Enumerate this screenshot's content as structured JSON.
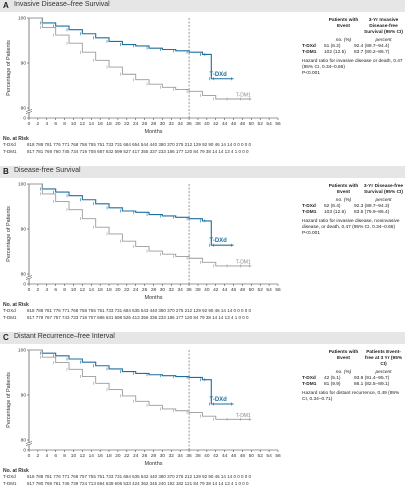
{
  "panels": [
    {
      "letter": "A",
      "title": "Invasive Disease–free Survival",
      "col_patients": "Patients with Event",
      "col_stat": "3-Yr Invasive Disease-free Survival (95% CI)",
      "units_no": "no. (%)",
      "units_pct": "percent",
      "rows": [
        {
          "arm": "T-DXd",
          "events": "51 (6.2)",
          "pct": "92.4 (89.7–94.4)"
        },
        {
          "arm": "T-DM1",
          "events": "102 (12.5)",
          "pct": "83.7 (80.2–86.7)"
        }
      ],
      "hazard_text": "Hazard ratio for invasive disease or death, 0.47 (95% CI, 0.34–0.66)",
      "p_text": "P<0.001",
      "risk_title": "No. at Risk",
      "risk": [
        {
          "arm": "T-DXd",
          "counts": "818 788 781 776 771 768 758 755 751 733 731 684 654 544 440 380 370 275 212 129 92 90 46 14 14 0 0 0 0 0"
        },
        {
          "arm": "T-DM1",
          "counts": "817 781 769 760 745 734 719 708 687 632 599 527 417 355 337 233 186 177 120 84 79 38 14 14 13 4 1 0 0 0"
        }
      ]
    },
    {
      "letter": "B",
      "title": "Disease-free Survival",
      "col_patients": "Patients with Event",
      "col_stat": "3-Yr Disease-free Survival (95% CI)",
      "units_no": "no. (%)",
      "units_pct": "percent",
      "rows": [
        {
          "arm": "T-DXd",
          "events": "52 (6.4)",
          "pct": "92.3 (89.7–94.3)"
        },
        {
          "arm": "T-DM1",
          "events": "103 (12.6)",
          "pct": "83.5 (79.9–86.4)"
        }
      ],
      "hazard_text": "Hazard ratio for invasive disease, noninvasive disease, or death, 0.47 (95% CI, 0.34–0.66)",
      "p_text": "P<0.001",
      "risk_title": "No. at Risk",
      "risk": [
        {
          "arm": "T-DXd",
          "counts": "818 788 781 776 771 768 758 755 751 733 731 684 635 543 440 380 370 275 212 129 92 90 46 14 14 0 0 0 0 0"
        },
        {
          "arm": "T-DM1",
          "counts": "817 779 767 757 743 733 718 707 686 631 598 526 413 356 336 233 186 177 120 84 79 38 14 14 13 4 1 0 0 0"
        }
      ]
    },
    {
      "letter": "C",
      "title": "Distant Recurrence–free Interval",
      "col_patients": "Patients with Event",
      "col_stat": "Patients Event-free at 3 Yr (95% CI)",
      "units_no": "no. (%)",
      "units_pct": "percent",
      "rows": [
        {
          "arm": "T-DXd",
          "events": "42 (5.1)",
          "pct": "93.9 (91.4–95.7)"
        },
        {
          "arm": "T-DM1",
          "events": "81 (9.9)",
          "pct": "86.1 (82.5–89.1)"
        }
      ],
      "hazard_text": "Hazard ratio for distant recurrence, 0.49 (95% CI, 0.34–0.71)",
      "p_text": "",
      "risk_title": "No. at Risk",
      "risk": [
        {
          "arm": "T-DXd",
          "counts": "818 788 781 776 771 768 757 755 751 733 731 684 635 542 440 380 370 276 212 129 92 90 46 14 14 0 0 0 0 0"
        },
        {
          "arm": "T-DM1",
          "counts": "817 780 769 761 746 739 724 713 694 639 606 533 424 362 345 240 192 182 121 84 79 38 14 14 13 4 1 0 0 0"
        }
      ]
    }
  ],
  "chart_data": [
    {
      "type": "line",
      "title": "Invasive Disease–free Survival",
      "xlabel": "Months",
      "ylabel": "Percentage of Patients",
      "xlim": [
        0,
        56
      ],
      "ylim": [
        0,
        100
      ],
      "y_ticks": [
        0,
        80,
        90,
        100
      ],
      "x_ticks": [
        0,
        2,
        4,
        6,
        8,
        10,
        12,
        14,
        16,
        18,
        20,
        22,
        24,
        26,
        28,
        30,
        32,
        34,
        36,
        38,
        40,
        42,
        44,
        46,
        48,
        50,
        52,
        54,
        56
      ],
      "reference_x": 36,
      "series": [
        {
          "name": "T-DXd",
          "color": "#1f6f9f",
          "x": [
            0,
            3,
            6,
            9,
            12,
            15,
            18,
            21,
            24,
            27,
            30,
            33,
            36,
            39,
            40,
            41,
            42,
            46
          ],
          "y": [
            100,
            98.9,
            98.2,
            97.4,
            96.5,
            95.6,
            94.8,
            94.1,
            93.8,
            93.3,
            93.0,
            92.7,
            92.4,
            91.9,
            91.9,
            86.5,
            86.5,
            86.5
          ]
        },
        {
          "name": "T-DM1",
          "color": "#9a9a9a",
          "x": [
            0,
            3,
            6,
            9,
            12,
            15,
            18,
            21,
            24,
            27,
            30,
            33,
            36,
            39,
            42,
            45,
            48,
            50
          ],
          "y": [
            100,
            97.9,
            96.2,
            94.4,
            92.4,
            90.6,
            89.1,
            87.5,
            86.3,
            85.3,
            84.6,
            84.1,
            83.7,
            82.8,
            82.0,
            82.0,
            82.0,
            82.0
          ]
        }
      ]
    },
    {
      "type": "line",
      "title": "Disease-free Survival",
      "xlabel": "Months",
      "ylabel": "Percentage of Patients",
      "xlim": [
        0,
        56
      ],
      "ylim": [
        0,
        100
      ],
      "y_ticks": [
        0,
        80,
        90,
        100
      ],
      "x_ticks": [
        0,
        2,
        4,
        6,
        8,
        10,
        12,
        14,
        16,
        18,
        20,
        22,
        24,
        26,
        28,
        30,
        32,
        34,
        36,
        38,
        40,
        42,
        44,
        46,
        48,
        50,
        52,
        54,
        56
      ],
      "reference_x": 36,
      "series": [
        {
          "name": "T-DXd",
          "color": "#1f6f9f",
          "x": [
            0,
            3,
            6,
            9,
            12,
            15,
            18,
            21,
            24,
            27,
            30,
            33,
            36,
            39,
            40,
            41,
            42,
            46
          ],
          "y": [
            100,
            98.9,
            98.2,
            97.4,
            96.5,
            95.6,
            94.7,
            94.0,
            93.7,
            93.2,
            92.9,
            92.6,
            92.3,
            91.8,
            91.8,
            86.4,
            86.4,
            86.4
          ]
        },
        {
          "name": "T-DM1",
          "color": "#9a9a9a",
          "x": [
            0,
            3,
            6,
            9,
            12,
            15,
            18,
            21,
            24,
            27,
            30,
            33,
            36,
            39,
            42,
            45,
            48,
            50
          ],
          "y": [
            100,
            97.8,
            96.1,
            94.3,
            92.3,
            90.4,
            88.9,
            87.3,
            86.1,
            85.1,
            84.4,
            83.9,
            83.5,
            82.6,
            81.8,
            81.8,
            81.8,
            81.8
          ]
        }
      ]
    },
    {
      "type": "line",
      "title": "Distant Recurrence–free Interval",
      "xlabel": "Months",
      "ylabel": "Percentage of Patients",
      "xlim": [
        0,
        56
      ],
      "ylim": [
        0,
        100
      ],
      "y_ticks": [
        0,
        80,
        90,
        100
      ],
      "x_ticks": [
        0,
        2,
        4,
        6,
        8,
        10,
        12,
        14,
        16,
        18,
        20,
        22,
        24,
        26,
        28,
        30,
        32,
        34,
        36,
        38,
        40,
        42,
        44,
        46,
        48,
        50,
        52,
        54,
        56
      ],
      "reference_x": 36,
      "series": [
        {
          "name": "T-DXd",
          "color": "#1f6f9f",
          "x": [
            0,
            3,
            6,
            9,
            12,
            15,
            18,
            21,
            24,
            27,
            30,
            33,
            36,
            39,
            40,
            41,
            42,
            46
          ],
          "y": [
            100,
            99.3,
            98.7,
            98.0,
            97.3,
            96.5,
            95.8,
            95.2,
            94.8,
            94.5,
            94.3,
            94.1,
            93.9,
            93.4,
            93.4,
            88.0,
            88.0,
            88.0
          ]
        },
        {
          "name": "T-DM1",
          "color": "#9a9a9a",
          "x": [
            0,
            3,
            6,
            9,
            12,
            15,
            18,
            21,
            24,
            27,
            30,
            33,
            36,
            39,
            42,
            45,
            48,
            50
          ],
          "y": [
            100,
            98.4,
            97.2,
            95.7,
            94.1,
            92.6,
            91.2,
            89.8,
            88.6,
            87.7,
            86.9,
            86.5,
            86.1,
            85.3,
            84.6,
            84.6,
            84.6,
            84.6
          ]
        }
      ]
    }
  ]
}
